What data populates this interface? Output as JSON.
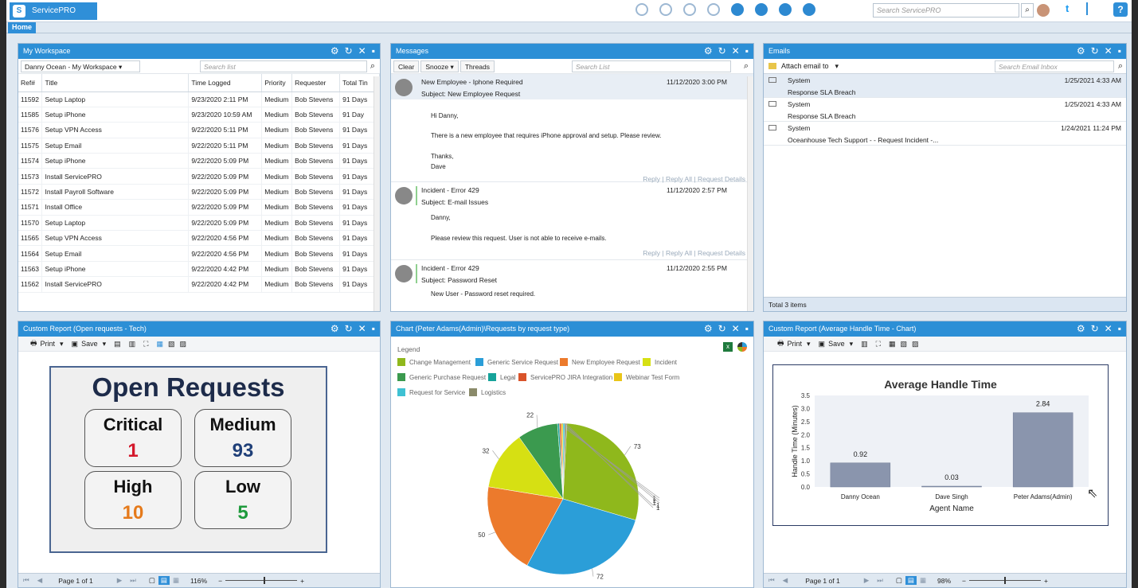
{
  "app": {
    "name": "ServicePRO",
    "logo_letter": "S"
  },
  "top": {
    "search_placeholder": "Search ServicePRO",
    "twitter": "t",
    "help": "?"
  },
  "nav": {
    "home": "Home"
  },
  "workspace": {
    "title": "My Workspace",
    "selector": "Danny Ocean - My Workspace",
    "search_placeholder": "Search list",
    "columns": [
      "Ref#",
      "Title",
      "Time Logged",
      "Priority",
      "Requester",
      "Total Tin"
    ],
    "rows": [
      [
        "11592",
        "Setup Laptop",
        "9/23/2020 2:11 PM",
        "Medium",
        "Bob Stevens",
        "91 Days"
      ],
      [
        "11585",
        "Setup iPhone",
        "9/23/2020 10:59 AM",
        "Medium",
        "Bob Stevens",
        "91 Day"
      ],
      [
        "11576",
        "Setup VPN Access",
        "9/22/2020 5:11 PM",
        "Medium",
        "Bob Stevens",
        "91 Days"
      ],
      [
        "11575",
        "Setup Email",
        "9/22/2020 5:11 PM",
        "Medium",
        "Bob Stevens",
        "91 Days"
      ],
      [
        "11574",
        "Setup iPhone",
        "9/22/2020 5:09 PM",
        "Medium",
        "Bob Stevens",
        "91 Days"
      ],
      [
        "11573",
        "Install ServicePRO",
        "9/22/2020 5:09 PM",
        "Medium",
        "Bob Stevens",
        "91 Days"
      ],
      [
        "11572",
        "Install Payroll Software",
        "9/22/2020 5:09 PM",
        "Medium",
        "Bob Stevens",
        "91 Days"
      ],
      [
        "11571",
        "Install Office",
        "9/22/2020 5:09 PM",
        "Medium",
        "Bob Stevens",
        "91 Days"
      ],
      [
        "11570",
        "Setup Laptop",
        "9/22/2020 5:09 PM",
        "Medium",
        "Bob Stevens",
        "91 Days"
      ],
      [
        "11565",
        "Setup VPN Access",
        "9/22/2020 4:56 PM",
        "Medium",
        "Bob Stevens",
        "91 Days"
      ],
      [
        "11564",
        "Setup Email",
        "9/22/2020 4:56 PM",
        "Medium",
        "Bob Stevens",
        "91 Days"
      ],
      [
        "11563",
        "Setup iPhone",
        "9/22/2020 4:42 PM",
        "Medium",
        "Bob Stevens",
        "91 Days"
      ],
      [
        "11562",
        "Install ServicePRO",
        "9/22/2020 4:42 PM",
        "Medium",
        "Bob Stevens",
        "91 Days"
      ]
    ]
  },
  "messages": {
    "title": "Messages",
    "btn_clear": "Clear",
    "btn_snooze": "Snooze",
    "btn_threads": "Threads",
    "search_placeholder": "Search List",
    "actions": {
      "reply": "Reply",
      "reply_all": "Reply All",
      "request_details": "Request Details",
      "sep": "|"
    },
    "items": [
      {
        "subject": "New Employee - Iphone Required",
        "sub": "Subject: New Employee Request",
        "date": "11/12/2020 3:00 PM",
        "b1": "Hi Danny,",
        "b2": "There is a new employee that requires iPhone approval and setup. Please review.",
        "b3": "Thanks,",
        "b4": "Dave"
      },
      {
        "subject": "Incident - Error 429",
        "sub": "Subject: E-mail Issues",
        "date": "11/12/2020 2:57 PM",
        "b1": "Danny,",
        "b2": "Please review this request. User is not able to receive e-mails."
      },
      {
        "subject": "Incident - Error 429",
        "sub": "Subject: Password Reset",
        "date": "11/12/2020 2:55 PM",
        "b1": "New User - Password reset required."
      }
    ]
  },
  "emails": {
    "title": "Emails",
    "attach": "Attach email to",
    "search_placeholder": "Search Email Inbox",
    "items": [
      {
        "from": "System",
        "subject": "Response SLA Breach",
        "date": "1/25/2021 4:33 AM"
      },
      {
        "from": "System",
        "subject": "Response SLA Breach",
        "date": "1/25/2021 4:33 AM"
      },
      {
        "from": "System",
        "subject": "Oceanhouse Tech Support -  - Request Incident -...",
        "date": "1/24/2021 11:24 PM"
      }
    ],
    "total": "Total 3 items"
  },
  "open_report": {
    "title": "Custom Report (Open requests - Tech)",
    "print": "Print",
    "save": "Save",
    "card_title": "Open Requests",
    "critical_label": "Critical",
    "critical": "1",
    "medium_label": "Medium",
    "medium": "93",
    "high_label": "High",
    "high": "10",
    "low_label": "Low",
    "low": "5",
    "page": "Page 1 of 1",
    "zoom": "116%",
    "zoom_level": 0.55
  },
  "pie": {
    "title": "Chart (Peter Adams(Admin)\\Requests by request type)",
    "legend_title": "Legend"
  },
  "aht": {
    "title": "Custom Report (Average Handle Time - Chart)",
    "print": "Print",
    "save": "Save",
    "page": "Page 1 of 1",
    "zoom": "98%",
    "zoom_level": 0.5
  },
  "chart_data": [
    {
      "type": "pie",
      "title": "",
      "categories": [
        "Change Management",
        "Generic Service Request",
        "New Employee Request",
        "Incident",
        "Generic Purchase Request",
        "Legal",
        "ServicePRO JIRA Integration",
        "Webinar Test Form",
        "Request for Service",
        "Logistics"
      ],
      "values": [
        73,
        72,
        50,
        32,
        22,
        1,
        1,
        1,
        1,
        1
      ],
      "colors": [
        "#8fb81c",
        "#2b9ed8",
        "#ec7a2c",
        "#d6e013",
        "#3b9a4f",
        "#16a39a",
        "#d9532a",
        "#e9c518",
        "#3ec1d3",
        "#8a8a6a"
      ],
      "legend": "top"
    },
    {
      "type": "bar",
      "title": "Average Handle Time",
      "categories": [
        "Danny Ocean",
        "Dave Singh",
        "Peter Adams(Admin)"
      ],
      "values": [
        0.92,
        0.03,
        2.84
      ],
      "xlabel": "Agent Name",
      "ylabel": "Handle Time (Minutes)",
      "ylim": [
        0,
        3.5
      ],
      "yticks": [
        "0.0",
        "0.5",
        "1.0",
        "1.5",
        "2.0",
        "2.5",
        "3.0",
        "3.5"
      ]
    }
  ]
}
